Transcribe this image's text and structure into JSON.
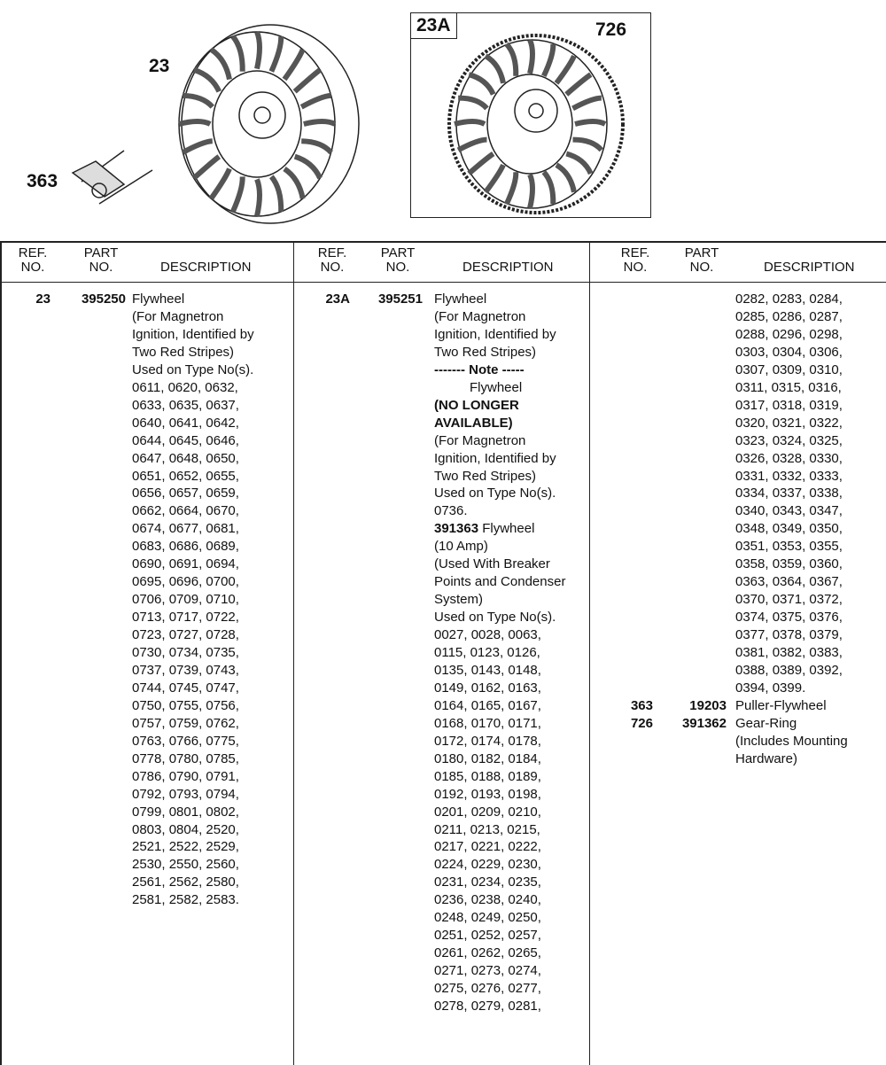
{
  "illustration": {
    "callouts": [
      "23",
      "363",
      "23A",
      "726"
    ]
  },
  "table": {
    "headers": {
      "ref": [
        "REF.",
        "NO."
      ],
      "part": [
        "PART",
        "NO."
      ],
      "description": "DESCRIPTION"
    },
    "columns": [
      {
        "entries": [
          {
            "ref": "23",
            "part": "395250",
            "lines": [
              {
                "text": "Flywheel"
              },
              {
                "text": "(For Magnetron"
              },
              {
                "text": "Ignition, Identified by"
              },
              {
                "text": "Two Red Stripes)"
              },
              {
                "text": "Used on Type No(s)."
              },
              {
                "text": "0611, 0620, 0632,"
              },
              {
                "text": "0633, 0635, 0637,"
              },
              {
                "text": "0640, 0641, 0642,"
              },
              {
                "text": "0644, 0645, 0646,"
              },
              {
                "text": "0647, 0648, 0650,"
              },
              {
                "text": "0651, 0652, 0655,"
              },
              {
                "text": "0656, 0657, 0659,"
              },
              {
                "text": "0662, 0664, 0670,"
              },
              {
                "text": "0674, 0677, 0681,"
              },
              {
                "text": "0683, 0686, 0689,"
              },
              {
                "text": "0690, 0691, 0694,"
              },
              {
                "text": "0695, 0696, 0700,"
              },
              {
                "text": "0706, 0709, 0710,"
              },
              {
                "text": "0713, 0717, 0722,"
              },
              {
                "text": "0723, 0727, 0728,"
              },
              {
                "text": "0730, 0734, 0735,"
              },
              {
                "text": "0737, 0739, 0743,"
              },
              {
                "text": "0744, 0745, 0747,"
              },
              {
                "text": "0750, 0755, 0756,"
              },
              {
                "text": "0757, 0759, 0762,"
              },
              {
                "text": "0763, 0766, 0775,"
              },
              {
                "text": "0778, 0780, 0785,"
              },
              {
                "text": "0786, 0790, 0791,"
              },
              {
                "text": "0792, 0793, 0794,"
              },
              {
                "text": "0799, 0801, 0802,"
              },
              {
                "text": "0803, 0804, 2520,"
              },
              {
                "text": "2521, 2522, 2529,"
              },
              {
                "text": "2530, 2550, 2560,"
              },
              {
                "text": "2561, 2562, 2580,"
              },
              {
                "text": "2581, 2582, 2583."
              }
            ]
          }
        ]
      },
      {
        "entries": [
          {
            "ref": "23A",
            "part": "395251",
            "lines": [
              {
                "text": "Flywheel"
              },
              {
                "text": "(For Magnetron"
              },
              {
                "text": "Ignition, Identified by"
              },
              {
                "text": "Two Red Stripes)"
              },
              {
                "text": "------- Note -----",
                "bold": true
              },
              {
                "text": "Flywheel",
                "indent": true
              },
              {
                "text": "(NO LONGER",
                "bold": true
              },
              {
                "text": "AVAILABLE)",
                "bold": true
              },
              {
                "text": "(For Magnetron"
              },
              {
                "text": "Ignition, Identified by"
              },
              {
                "text": "Two Red Stripes)"
              },
              {
                "text": "Used on Type No(s)."
              },
              {
                "text": "0736."
              },
              {
                "bold_prefix": "391363",
                "text": " Flywheel"
              },
              {
                "text": "(10 Amp)"
              },
              {
                "text": "(Used With Breaker"
              },
              {
                "text": "Points and Condenser"
              },
              {
                "text": "System)"
              },
              {
                "text": "Used on Type No(s)."
              },
              {
                "text": "0027, 0028, 0063,"
              },
              {
                "text": "0115, 0123, 0126,"
              },
              {
                "text": "0135, 0143, 0148,"
              },
              {
                "text": "0149, 0162, 0163,"
              },
              {
                "text": "0164, 0165, 0167,"
              },
              {
                "text": "0168, 0170, 0171,"
              },
              {
                "text": "0172, 0174, 0178,"
              },
              {
                "text": "0180, 0182, 0184,"
              },
              {
                "text": "0185, 0188, 0189,"
              },
              {
                "text": "0192, 0193, 0198,"
              },
              {
                "text": "0201, 0209, 0210,"
              },
              {
                "text": "0211, 0213, 0215,"
              },
              {
                "text": "0217, 0221, 0222,"
              },
              {
                "text": "0224, 0229, 0230,"
              },
              {
                "text": "0231, 0234, 0235,"
              },
              {
                "text": "0236, 0238, 0240,"
              },
              {
                "text": "0248, 0249, 0250,"
              },
              {
                "text": "0251, 0252, 0257,"
              },
              {
                "text": "0261, 0262, 0265,"
              },
              {
                "text": "0271, 0273, 0274,"
              },
              {
                "text": "0275, 0276, 0277,"
              },
              {
                "text": "0278, 0279, 0281,"
              }
            ]
          }
        ]
      },
      {
        "entries": [
          {
            "ref": "",
            "part": "",
            "lines": [
              {
                "text": "0282, 0283, 0284,"
              },
              {
                "text": "0285, 0286, 0287,"
              },
              {
                "text": "0288, 0296, 0298,"
              },
              {
                "text": "0303, 0304, 0306,"
              },
              {
                "text": "0307, 0309, 0310,"
              },
              {
                "text": "0311, 0315, 0316,"
              },
              {
                "text": "0317, 0318, 0319,"
              },
              {
                "text": "0320, 0321, 0322,"
              },
              {
                "text": "0323, 0324, 0325,"
              },
              {
                "text": "0326, 0328, 0330,"
              },
              {
                "text": "0331, 0332, 0333,"
              },
              {
                "text": "0334, 0337, 0338,"
              },
              {
                "text": "0340, 0343, 0347,"
              },
              {
                "text": "0348, 0349, 0350,"
              },
              {
                "text": "0351, 0353, 0355,"
              },
              {
                "text": "0358, 0359, 0360,"
              },
              {
                "text": "0363, 0364, 0367,"
              },
              {
                "text": "0370, 0371, 0372,"
              },
              {
                "text": "0374, 0375, 0376,"
              },
              {
                "text": "0377, 0378, 0379,"
              },
              {
                "text": "0381, 0382, 0383,"
              },
              {
                "text": "0388, 0389, 0392,"
              },
              {
                "text": "0394, 0399."
              }
            ]
          },
          {
            "ref": "363",
            "part": "19203",
            "lines": [
              {
                "text": "Puller-Flywheel"
              }
            ]
          },
          {
            "ref": "726",
            "part": "391362",
            "lines": [
              {
                "text": "Gear-Ring"
              },
              {
                "text": "(Includes Mounting"
              },
              {
                "text": "Hardware)"
              }
            ]
          }
        ]
      }
    ]
  }
}
